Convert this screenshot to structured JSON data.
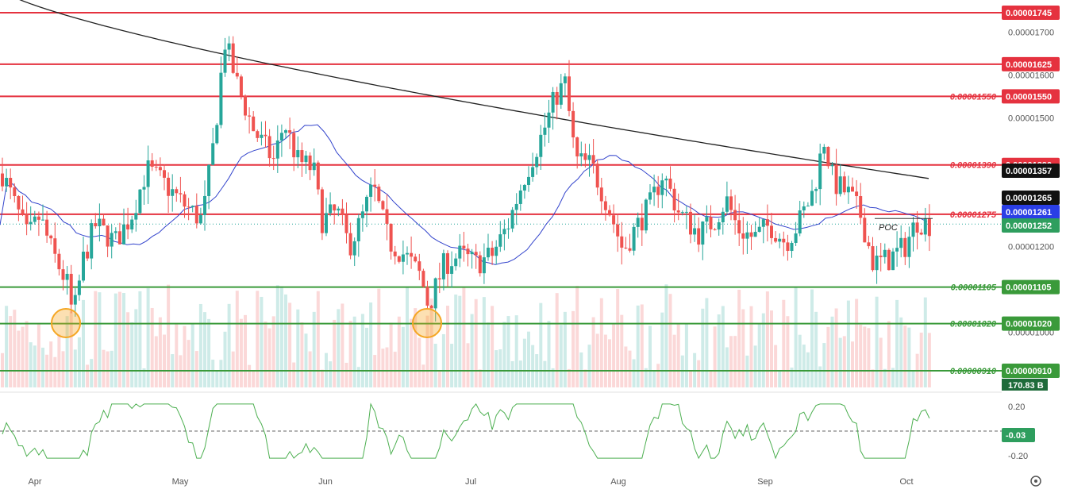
{
  "chart_data": {
    "type": "candlestick",
    "title": "",
    "x_labels": [
      "Apr",
      "May",
      "Jun",
      "Jul",
      "Aug",
      "Sep",
      "Oct"
    ],
    "price_ticks": [
      "0.00001700",
      "0.00001600",
      "0.00001500",
      "0.00001200",
      "0.00001000"
    ],
    "oscillator_ticks": [
      "0.20",
      "-0.20"
    ],
    "oscillator_value": "-0.03",
    "volume_value": "170.83 B",
    "price_axis": {
      "range": [
        8.7e-06,
        1.8e-05
      ]
    },
    "last_price": "0.00001252",
    "ma_fast_value": "0.00001261",
    "ma_slow_value": "0.00001357",
    "poc_label": "POC",
    "poc_value": "0.00001265",
    "resistance_levels": [
      {
        "value": "0.00001745",
        "labelled": false
      },
      {
        "value": "0.00001625",
        "labelled": false
      },
      {
        "value": "0.00001550",
        "labelled": true
      },
      {
        "value": "0.00001390",
        "labelled": true
      },
      {
        "value": "0.00001275",
        "labelled": true
      }
    ],
    "support_levels": [
      {
        "value": "0.00001105",
        "labelled": true
      },
      {
        "value": "0.00001020",
        "labelled": true
      },
      {
        "value": "0.00000910",
        "labelled": true
      }
    ],
    "colors": {
      "up": "#26a69a",
      "down": "#ef5350",
      "resistance": "#e5323f",
      "support": "#3a9a3a",
      "ma_fast": "#3344cc",
      "ma_slow": "#222222",
      "oscillator": "#4caf50",
      "marker": "#f5a623",
      "price_tag": "#2e9e5e"
    },
    "markers": [
      {
        "value": "0.00001020",
        "note": "April low"
      },
      {
        "value": "0.00001020",
        "note": "June low"
      }
    ]
  }
}
